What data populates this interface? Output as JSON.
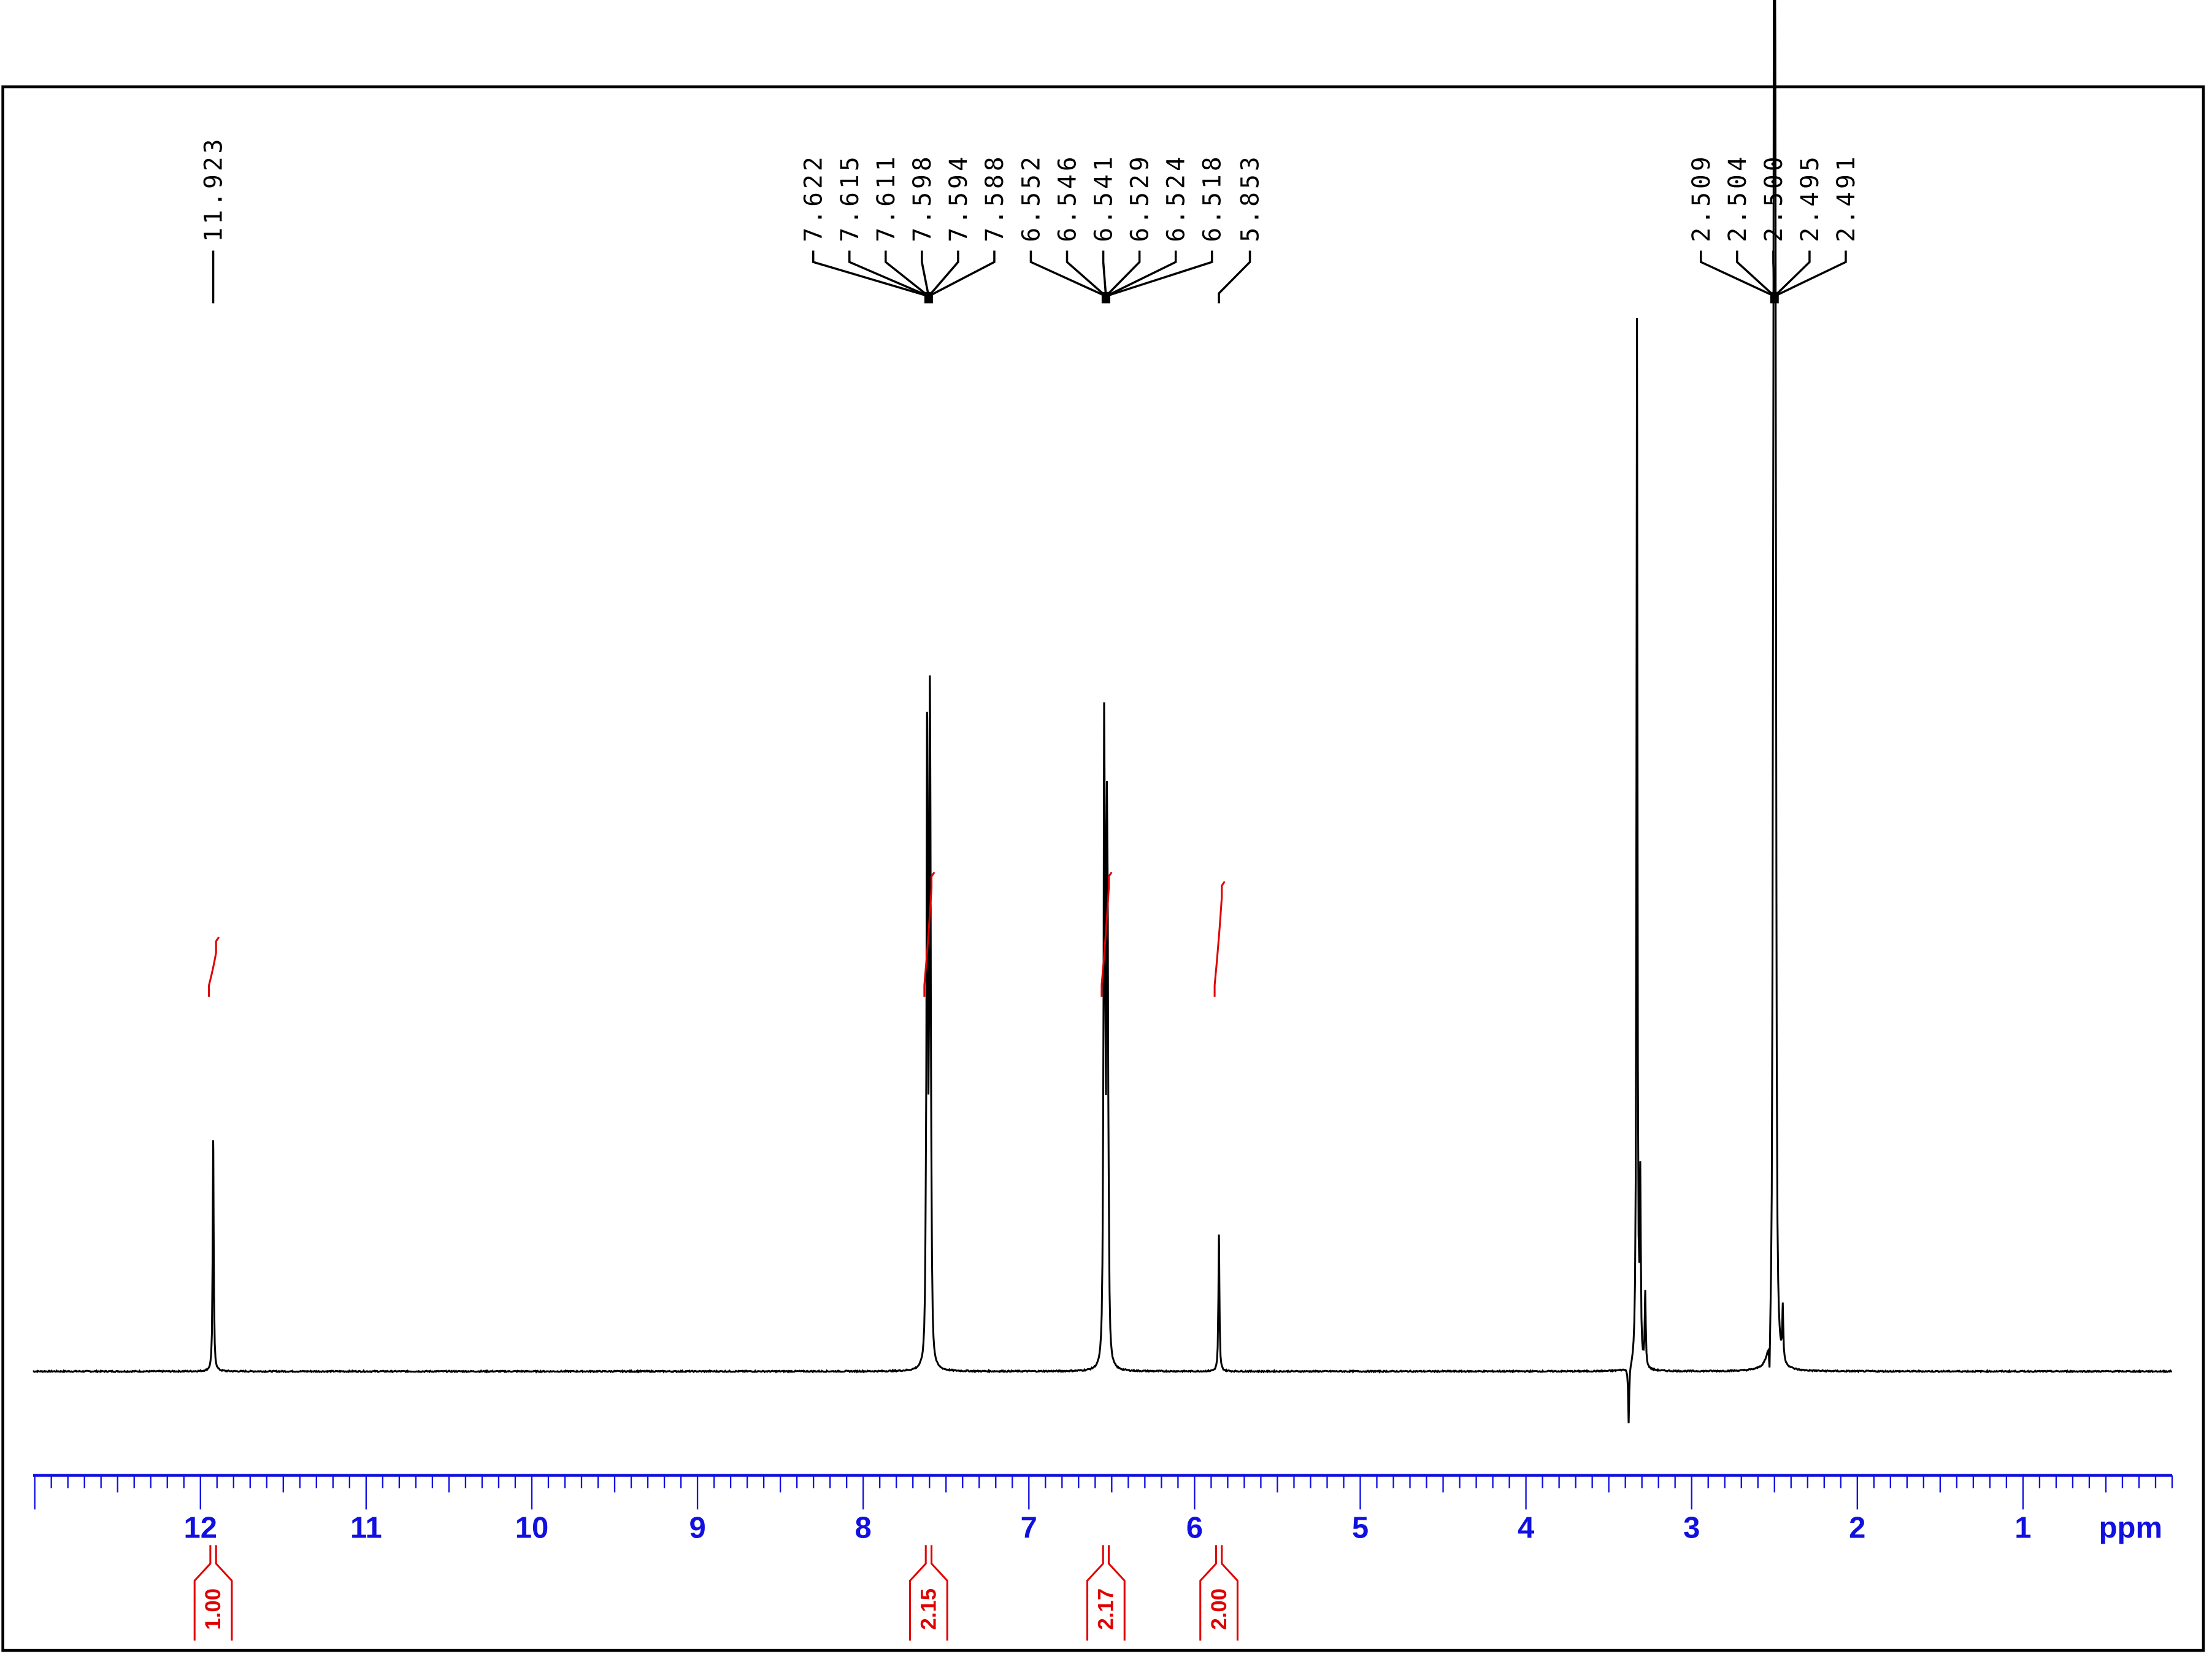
{
  "chart_data": {
    "type": "line",
    "title": "",
    "xlabel": "ppm",
    "ylabel": "",
    "xlim": [
      13.01,
      0.1
    ],
    "x_reversed": true,
    "xticks": [
      12,
      11,
      10,
      9,
      8,
      7,
      6,
      5,
      4,
      3,
      2,
      1
    ],
    "xtick_labels": [
      "12",
      "11",
      "10",
      "9",
      "8",
      "7",
      "6",
      "5",
      "4",
      "3",
      "2",
      "1"
    ],
    "minor_tick_step": 0.1,
    "ylim": [
      -8,
      100
    ],
    "colors": {
      "spectrum": "#000000",
      "axis": "#1010e0",
      "integral": "#e00000",
      "frame": "#000000"
    },
    "peaks": [
      {
        "shift": 11.923,
        "height": 22
      },
      {
        "shift": 7.622,
        "height": 6
      },
      {
        "shift": 7.615,
        "height": 45
      },
      {
        "shift": 7.611,
        "height": 30
      },
      {
        "shift": 7.598,
        "height": 49
      },
      {
        "shift": 7.594,
        "height": 28
      },
      {
        "shift": 7.588,
        "height": 6
      },
      {
        "shift": 6.552,
        "height": 6
      },
      {
        "shift": 6.546,
        "height": 50
      },
      {
        "shift": 6.541,
        "height": 30
      },
      {
        "shift": 6.529,
        "height": 42
      },
      {
        "shift": 6.524,
        "height": 28
      },
      {
        "shift": 6.518,
        "height": 6
      },
      {
        "shift": 5.853,
        "height": 13
      },
      {
        "shift": 3.33,
        "height": 100
      },
      {
        "shift": 3.31,
        "height": 17
      },
      {
        "shift": 3.28,
        "height": 7
      },
      {
        "shift": 3.38,
        "height": -5.5
      },
      {
        "shift": 2.509,
        "height": 30
      },
      {
        "shift": 2.504,
        "height": 70
      },
      {
        "shift": 2.5,
        "height": 100
      },
      {
        "shift": 2.495,
        "height": 70
      },
      {
        "shift": 2.491,
        "height": 30
      },
      {
        "shift": 2.53,
        "height": -4
      },
      {
        "shift": 2.45,
        "height": 5
      }
    ],
    "peak_labels": [
      {
        "group": [
          "11.923"
        ],
        "center": 11.923
      },
      {
        "group": [
          "7.622",
          "7.615",
          "7.611",
          "7.598",
          "7.594",
          "7.588"
        ],
        "center": 7.605
      },
      {
        "group": [
          "6.552",
          "6.546",
          "6.541",
          "6.529",
          "6.524",
          "6.518"
        ],
        "center": 6.535
      },
      {
        "group": [
          "5.853"
        ],
        "center": 5.853
      },
      {
        "group": [
          "2.509",
          "2.504",
          "2.500",
          "2.495",
          "2.491"
        ],
        "center": 2.5
      }
    ],
    "integrals": [
      {
        "center": 11.923,
        "value": "1.00",
        "rise": 6
      },
      {
        "center": 7.605,
        "value": "2.15",
        "rise": 13
      },
      {
        "center": 6.535,
        "value": "2.17",
        "rise": 13
      },
      {
        "center": 5.853,
        "value": "2.00",
        "rise": 12
      }
    ]
  }
}
